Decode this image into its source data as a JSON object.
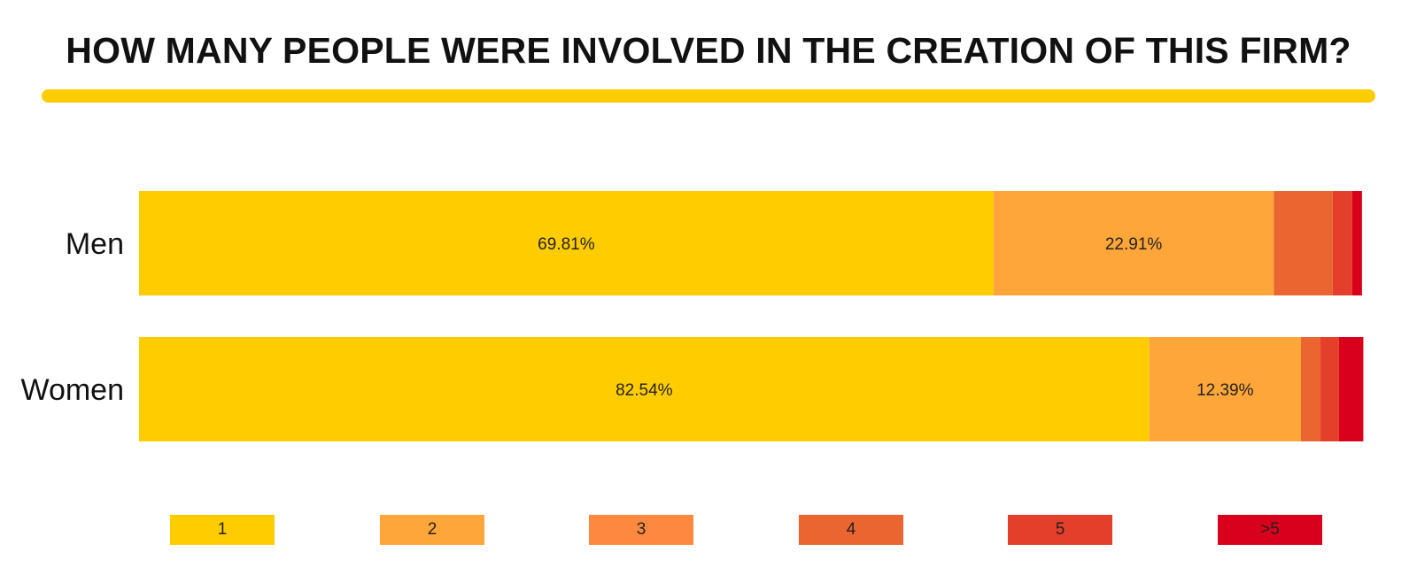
{
  "colors": {
    "accent": "#FFCC00",
    "segments": [
      "#FFCC00",
      "#FFA63A",
      "#FF8840",
      "#EB6530",
      "#E43F2B",
      "#D9001B"
    ]
  },
  "chart_data": {
    "type": "bar",
    "orientation": "horizontal",
    "stacked": true,
    "title": "HOW MANY PEOPLE WERE INVOLVED IN THE CREATION OF THIS FIRM?",
    "xlabel": "",
    "ylabel": "",
    "xlim": [
      0,
      100
    ],
    "unit": "%",
    "grid": false,
    "legend_position": "bottom",
    "categories": [
      "Men",
      "Women"
    ],
    "series": [
      {
        "name": "1",
        "values": [
          69.81,
          82.54
        ],
        "labels": [
          "69.81%",
          "82.54%"
        ]
      },
      {
        "name": "2",
        "values": [
          22.91,
          12.39
        ],
        "labels": [
          "22.91%",
          "12.39%"
        ]
      },
      {
        "name": "3",
        "values": [
          0.0,
          0.0
        ],
        "labels": [
          "",
          ""
        ]
      },
      {
        "name": "4",
        "values": [
          4.8,
          1.6
        ],
        "labels": [
          "",
          ""
        ]
      },
      {
        "name": "5",
        "values": [
          1.6,
          1.5
        ],
        "labels": [
          "",
          ""
        ]
      },
      {
        "name": ">5",
        "values": [
          0.8,
          2.0
        ],
        "labels": [
          "",
          ""
        ]
      }
    ]
  }
}
